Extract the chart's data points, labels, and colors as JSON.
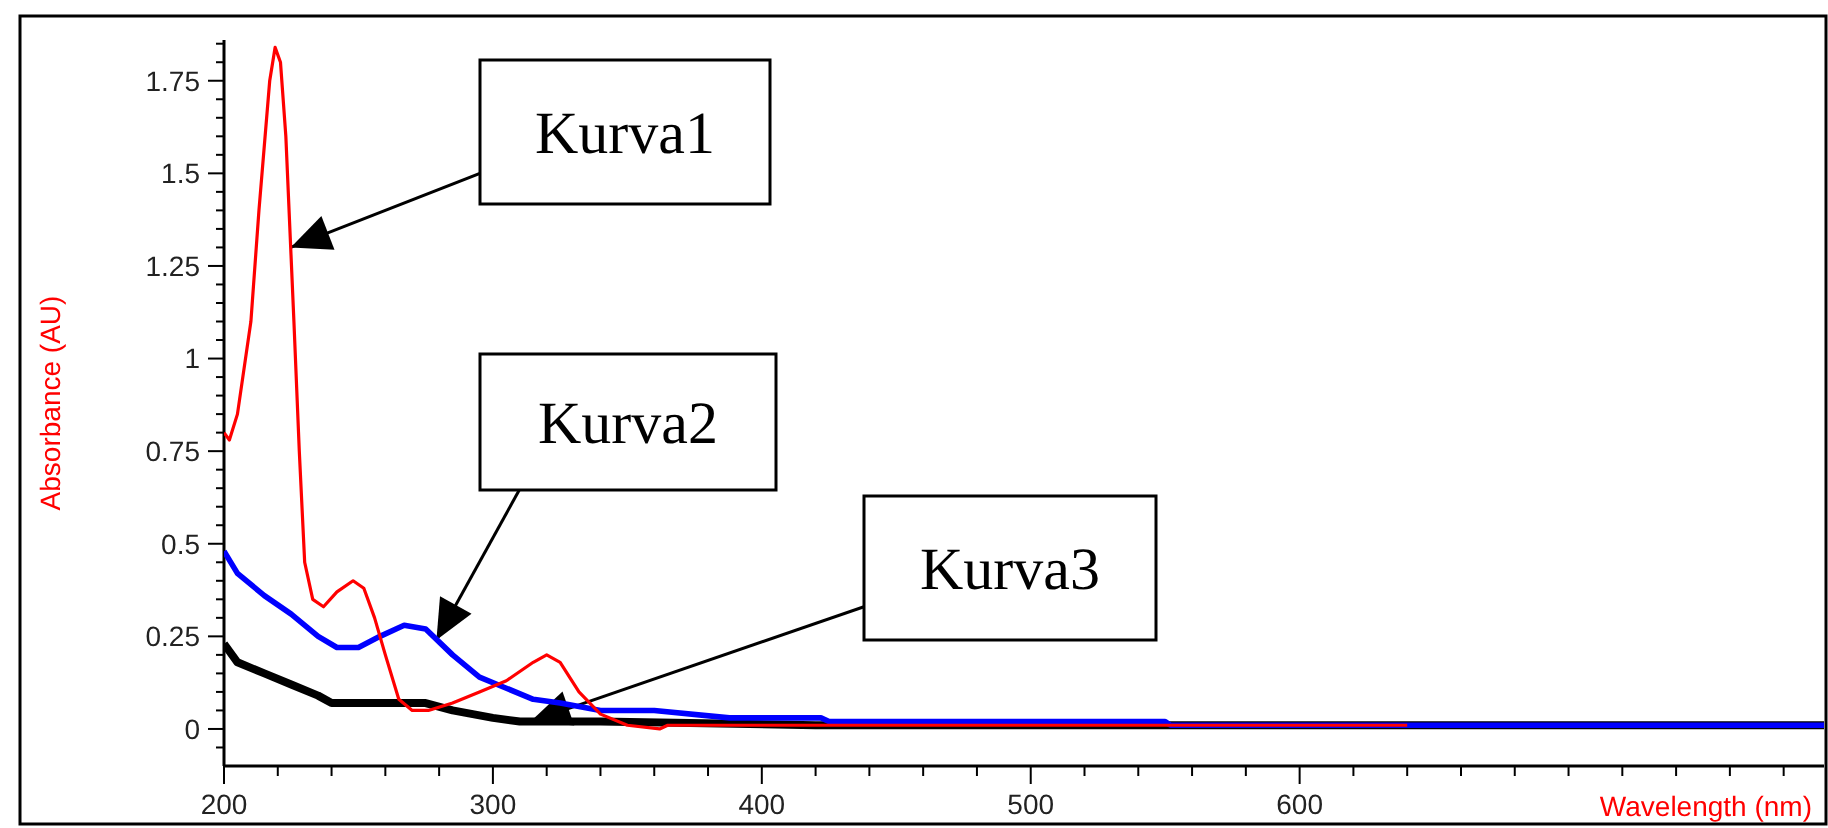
{
  "chart_data": {
    "type": "line",
    "xlabel": "Wavelength (nm)",
    "ylabel": "Absorbance (AU)",
    "xlim": [
      200,
      795
    ],
    "ylim": [
      -0.1,
      1.86
    ],
    "xticks": [
      200,
      {
        "value": 220,
        "label": null
      },
      {
        "value": 240,
        "label": null
      },
      {
        "value": 260,
        "label": null
      },
      {
        "value": 280,
        "label": null
      },
      300,
      {
        "value": 320,
        "label": null
      },
      {
        "value": 340,
        "label": null
      },
      {
        "value": 360,
        "label": null
      },
      {
        "value": 380,
        "label": null
      },
      400,
      {
        "value": 420,
        "label": null
      },
      {
        "value": 440,
        "label": null
      },
      {
        "value": 460,
        "label": null
      },
      {
        "value": 480,
        "label": null
      },
      500,
      {
        "value": 520,
        "label": null
      },
      {
        "value": 540,
        "label": null
      },
      {
        "value": 560,
        "label": null
      },
      {
        "value": 580,
        "label": null
      },
      600,
      {
        "value": 620,
        "label": null
      },
      {
        "value": 640,
        "label": null
      },
      {
        "value": 660,
        "label": null
      },
      {
        "value": 680,
        "label": null
      },
      {
        "value": 700,
        "label": null
      },
      {
        "value": 720,
        "label": null
      },
      {
        "value": 740,
        "label": null
      },
      {
        "value": 760,
        "label": null
      },
      {
        "value": 780,
        "label": null
      }
    ],
    "yticks": [
      {
        "value": -0.05,
        "label": null
      },
      0,
      {
        "value": 0.05,
        "label": null
      },
      {
        "value": 0.1,
        "label": null
      },
      {
        "value": 0.15,
        "label": null
      },
      {
        "value": 0.2,
        "label": null
      },
      0.25,
      {
        "value": 0.3,
        "label": null
      },
      {
        "value": 0.35,
        "label": null
      },
      {
        "value": 0.4,
        "label": null
      },
      {
        "value": 0.45,
        "label": null
      },
      0.5,
      {
        "value": 0.55,
        "label": null
      },
      {
        "value": 0.6,
        "label": null
      },
      {
        "value": 0.65,
        "label": null
      },
      {
        "value": 0.7,
        "label": null
      },
      0.75,
      {
        "value": 0.8,
        "label": null
      },
      {
        "value": 0.85,
        "label": null
      },
      {
        "value": 0.9,
        "label": null
      },
      {
        "value": 0.95,
        "label": null
      },
      1,
      {
        "value": 1.05,
        "label": null
      },
      {
        "value": 1.1,
        "label": null
      },
      {
        "value": 1.15,
        "label": null
      },
      {
        "value": 1.2,
        "label": null
      },
      1.25,
      {
        "value": 1.3,
        "label": null
      },
      {
        "value": 1.35,
        "label": null
      },
      {
        "value": 1.4,
        "label": null
      },
      {
        "value": 1.45,
        "label": null
      },
      1.5,
      {
        "value": 1.55,
        "label": null
      },
      {
        "value": 1.6,
        "label": null
      },
      {
        "value": 1.65,
        "label": null
      },
      {
        "value": 1.7,
        "label": null
      },
      1.75,
      {
        "value": 1.8,
        "label": null
      },
      {
        "value": 1.85,
        "label": null
      }
    ],
    "grid": false,
    "line_style": "solid",
    "marker": "none",
    "series": [
      {
        "color": "#000000",
        "x": [
          200,
          205,
          215,
          225,
          235,
          240,
          275,
          285,
          300,
          310,
          340,
          420,
          795
        ],
        "values": [
          0.23,
          0.18,
          0.15,
          0.12,
          0.09,
          0.07,
          0.07,
          0.05,
          0.03,
          0.02,
          0.02,
          0.01,
          0.01
        ]
      },
      {
        "color": "#0000ff",
        "x": [
          200,
          205,
          215,
          225,
          235,
          242,
          250,
          258,
          267,
          275,
          285,
          295,
          305,
          315,
          325,
          340,
          360,
          388,
          422,
          425,
          550,
          552,
          795
        ],
        "values": [
          0.48,
          0.42,
          0.36,
          0.31,
          0.25,
          0.22,
          0.22,
          0.25,
          0.28,
          0.27,
          0.2,
          0.14,
          0.11,
          0.08,
          0.07,
          0.05,
          0.05,
          0.03,
          0.03,
          0.02,
          0.02,
          0.01,
          0.01
        ]
      },
      {
        "color": "#ff0000",
        "x": [
          200,
          202,
          205,
          210,
          213,
          217,
          219,
          221,
          223,
          226,
          228,
          230,
          233,
          237,
          242,
          248,
          252,
          256,
          260,
          265,
          270,
          276,
          285,
          295,
          305,
          315,
          320,
          325,
          332,
          340,
          350,
          362,
          365,
          420,
          550,
          640
        ],
        "values": [
          0.8,
          0.78,
          0.85,
          1.1,
          1.4,
          1.75,
          1.84,
          1.8,
          1.6,
          1.1,
          0.75,
          0.45,
          0.35,
          0.33,
          0.37,
          0.4,
          0.38,
          0.3,
          0.2,
          0.08,
          0.05,
          0.05,
          0.07,
          0.1,
          0.13,
          0.18,
          0.2,
          0.18,
          0.1,
          0.04,
          0.01,
          0.0,
          0.01,
          0.01,
          0.01,
          0.01
        ]
      }
    ],
    "annotations": [
      {
        "text": "Kurva1",
        "x": 224.8,
        "y": 1.3
      },
      {
        "text": "Kurva2",
        "x": 279,
        "y": 0.24
      },
      {
        "text": "Kurva3",
        "x": 314,
        "y": 0.02
      }
    ]
  }
}
